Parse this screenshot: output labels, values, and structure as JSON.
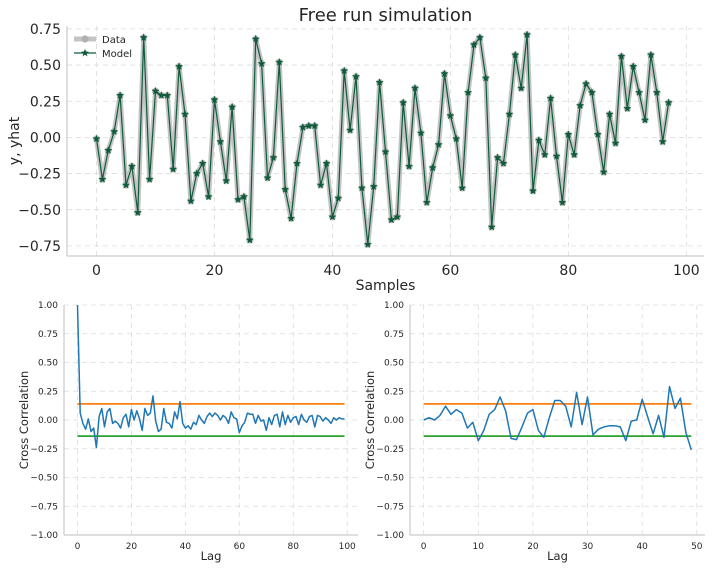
{
  "chart_data": [
    {
      "type": "line",
      "title": "Free run simulation",
      "xlabel": "Samples",
      "ylabel": "y, yhat",
      "xlim": [
        -5,
        103
      ],
      "ylim": [
        -0.82,
        0.77
      ],
      "xticks": [
        "0",
        "20",
        "40",
        "60",
        "80",
        "100"
      ],
      "yticks": [
        "−0.75",
        "−0.50",
        "−0.25",
        "0.00",
        "0.25",
        "0.50",
        "0.75"
      ],
      "grid": true,
      "legend": "top-left",
      "series": [
        {
          "name": "Data",
          "color": "#b0b0b0",
          "marker": "circle"
        },
        {
          "name": "Model",
          "color": "#0e5c3a",
          "marker": "star"
        }
      ],
      "x": [
        0,
        1,
        2,
        3,
        4,
        5,
        6,
        7,
        8,
        9,
        10,
        11,
        12,
        13,
        14,
        15,
        16,
        17,
        18,
        19,
        20,
        21,
        22,
        23,
        24,
        25,
        26,
        27,
        28,
        29,
        30,
        31,
        32,
        33,
        34,
        35,
        36,
        37,
        38,
        39,
        40,
        41,
        42,
        43,
        44,
        45,
        46,
        47,
        48,
        49,
        50,
        51,
        52,
        53,
        54,
        55,
        56,
        57,
        58,
        59,
        60,
        61,
        62,
        63,
        64,
        65,
        66,
        67,
        68,
        69,
        70,
        71,
        72,
        73,
        74,
        75,
        76,
        77,
        78,
        79,
        80,
        81,
        82,
        83,
        84,
        85,
        86,
        87,
        88,
        89,
        90,
        91,
        92,
        93,
        94,
        95,
        96,
        97
      ],
      "values": [
        -0.01,
        -0.29,
        -0.09,
        0.04,
        0.29,
        -0.33,
        -0.2,
        -0.52,
        0.69,
        -0.29,
        0.32,
        0.29,
        0.29,
        -0.22,
        0.49,
        0.16,
        -0.44,
        -0.25,
        -0.18,
        -0.41,
        0.26,
        -0.03,
        -0.3,
        0.21,
        -0.43,
        -0.41,
        -0.71,
        0.68,
        0.51,
        -0.28,
        -0.14,
        0.52,
        -0.36,
        -0.56,
        -0.18,
        0.07,
        0.08,
        0.08,
        -0.33,
        -0.18,
        -0.55,
        -0.42,
        0.46,
        0.05,
        0.42,
        -0.35,
        -0.74,
        -0.34,
        0.38,
        -0.1,
        -0.57,
        -0.55,
        0.24,
        -0.2,
        0.34,
        0.03,
        -0.45,
        -0.21,
        -0.05,
        0.44,
        0.15,
        -0.01,
        -0.35,
        0.31,
        0.64,
        0.69,
        0.41,
        -0.62,
        -0.14,
        -0.18,
        0.16,
        0.57,
        0.34,
        0.71,
        -0.37,
        -0.02,
        -0.12,
        0.27,
        -0.13,
        -0.45,
        0.02,
        -0.12,
        0.22,
        0.37,
        0.31,
        0.02,
        -0.24,
        0.16,
        -0.04,
        0.56,
        0.2,
        0.49,
        0.31,
        0.12,
        0.57,
        0.31,
        -0.03,
        0.24
      ]
    },
    {
      "type": "line",
      "xlabel": "Lag",
      "ylabel": "Cross Correlation",
      "xlim": [
        -5,
        104
      ],
      "ylim": [
        -1.0,
        1.0
      ],
      "xticks": [
        "0",
        "20",
        "40",
        "60",
        "80",
        "100"
      ],
      "yticks": [
        "−1.00",
        "−0.75",
        "−0.50",
        "−0.25",
        "0.00",
        "0.25",
        "0.50",
        "0.75",
        "1.00"
      ],
      "grid": true,
      "series": [
        {
          "color": "#1f77b4",
          "values": [
            1.0,
            0.06,
            -0.03,
            -0.08,
            0.01,
            -0.1,
            -0.07,
            -0.24,
            0.03,
            0.1,
            -0.06,
            0.07,
            0.1,
            -0.03,
            -0.01,
            -0.03,
            -0.07,
            0.02,
            0.05,
            -0.06,
            0.09,
            0.0,
            0.08,
            0.01,
            -0.09,
            0.1,
            0.04,
            0.06,
            0.21,
            -0.01,
            -0.1,
            -0.08,
            0.1,
            -0.02,
            -0.03,
            -0.07,
            0.07,
            0.01,
            0.16,
            -0.03,
            -0.07,
            -0.05,
            -0.08,
            -0.02,
            -0.04,
            0.04,
            0.0,
            -0.03,
            0.03,
            0.06,
            0.03,
            0.06,
            0.04,
            0.0,
            0.04,
            0.02,
            -0.03,
            0.07,
            0.02,
            0.01,
            -0.11,
            -0.05,
            -0.02,
            0.06,
            0.05,
            0.05,
            -0.03,
            0.04,
            -0.01,
            0.0,
            -0.09,
            0.02,
            -0.04,
            0.04,
            0.05,
            -0.06,
            0.07,
            -0.04,
            0.04,
            -0.02,
            0.02,
            0.03,
            -0.04,
            0.05,
            0.0,
            -0.02,
            0.03,
            0.04,
            -0.06,
            0.04,
            0.03,
            -0.01,
            0.02,
            0.0,
            -0.03,
            0.02,
            0.0,
            0.02,
            0.01,
            0.01
          ]
        },
        {
          "color": "#ff7f0e",
          "values": [
            0.14,
            0.14
          ]
        },
        {
          "color": "#2ca02c",
          "values": [
            -0.14,
            -0.14
          ]
        }
      ]
    },
    {
      "type": "line",
      "xlabel": "Lag",
      "ylabel": "Cross Correlation",
      "xlim": [
        -2.5,
        51.5
      ],
      "ylim": [
        -1.0,
        1.0
      ],
      "xticks": [
        "0",
        "10",
        "20",
        "30",
        "40",
        "50"
      ],
      "yticks": [
        "−1.00",
        "−0.75",
        "−0.50",
        "−0.25",
        "0.00",
        "0.25",
        "0.50",
        "0.75",
        "1.00"
      ],
      "grid": true,
      "series": [
        {
          "color": "#1f77b4",
          "values": [
            0.0,
            0.02,
            0.0,
            0.04,
            0.12,
            0.05,
            0.09,
            0.06,
            -0.07,
            -0.02,
            -0.18,
            -0.09,
            0.05,
            0.09,
            0.2,
            0.08,
            -0.16,
            -0.17,
            -0.06,
            0.06,
            0.09,
            -0.09,
            -0.15,
            0.02,
            0.17,
            0.17,
            0.12,
            -0.06,
            0.24,
            -0.04,
            0.2,
            -0.13,
            -0.08,
            -0.06,
            -0.05,
            -0.05,
            -0.06,
            -0.18,
            -0.01,
            0.0,
            0.18,
            0.03,
            -0.12,
            0.04,
            -0.15,
            0.29,
            0.1,
            0.19,
            -0.11,
            -0.26
          ]
        },
        {
          "color": "#ff7f0e",
          "values": [
            0.14,
            0.14
          ]
        },
        {
          "color": "#2ca02c",
          "values": [
            -0.14,
            -0.14
          ]
        }
      ]
    }
  ]
}
